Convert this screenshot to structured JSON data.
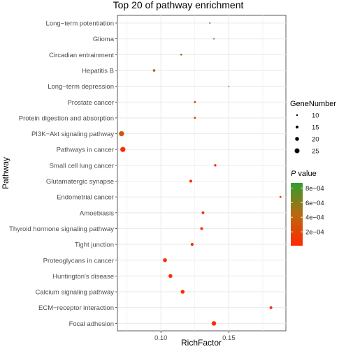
{
  "chart_data": {
    "type": "scatter",
    "title": "Top 20 of pathway enrichment",
    "xlabel": "RichFactor",
    "ylabel": "Pathway",
    "xlim": [
      0.068,
      0.192
    ],
    "xticks": [
      0.1,
      0.15
    ],
    "xtick_labels": [
      "0.10",
      "0.15"
    ],
    "grid": true,
    "categories": [
      "Long−term potentiation",
      "Glioma",
      "Circadian entrainment",
      "Hepatitis B",
      "Long−term depression",
      "Prostate cancer",
      "Protein digestion and absorption",
      "PI3K−Akt signaling pathway",
      "Pathways in cancer",
      "Small cell lung cancer",
      "Glutamatergic synapse",
      "Endometrial cancer",
      "Amoebiasis",
      "Thyroid hormone signaling pathway",
      "Tight junction",
      "Proteoglycans in cancer",
      "Huntington's disease",
      "Calcium signaling pathway",
      "ECM−receptor interaction",
      "Focal adhesion"
    ],
    "points": [
      {
        "pathway": "Long−term potentiation",
        "richfactor": 0.136,
        "gene_number": 9,
        "p_value": 0.00085
      },
      {
        "pathway": "Glioma",
        "richfactor": 0.139,
        "gene_number": 9,
        "p_value": 0.00085
      },
      {
        "pathway": "Circadian entrainment",
        "richfactor": 0.115,
        "gene_number": 11,
        "p_value": 0.0006
      },
      {
        "pathway": "Hepatitis B",
        "richfactor": 0.095,
        "gene_number": 14,
        "p_value": 0.0004
      },
      {
        "pathway": "Long−term depression",
        "richfactor": 0.15,
        "gene_number": 8,
        "p_value": 0.00085
      },
      {
        "pathway": "Prostate cancer",
        "richfactor": 0.125,
        "gene_number": 12,
        "p_value": 0.0003
      },
      {
        "pathway": "Protein digestion and absorption",
        "richfactor": 0.125,
        "gene_number": 12,
        "p_value": 0.0003
      },
      {
        "pathway": "PI3K−Akt signaling pathway",
        "richfactor": 0.071,
        "gene_number": 26,
        "p_value": 0.0003
      },
      {
        "pathway": "Pathways in cancer",
        "richfactor": 0.072,
        "gene_number": 26,
        "p_value": 2e-05
      },
      {
        "pathway": "Small cell lung cancer",
        "richfactor": 0.14,
        "gene_number": 13,
        "p_value": 2e-05
      },
      {
        "pathway": "Glutamatergic synapse",
        "richfactor": 0.122,
        "gene_number": 15,
        "p_value": 2e-05
      },
      {
        "pathway": "Endometrial cancer",
        "richfactor": 0.188,
        "gene_number": 11,
        "p_value": 2e-05
      },
      {
        "pathway": "Amoebiasis",
        "richfactor": 0.131,
        "gene_number": 15,
        "p_value": 2e-05
      },
      {
        "pathway": "Thyroid hormone signaling pathway",
        "richfactor": 0.13,
        "gene_number": 15,
        "p_value": 2e-05
      },
      {
        "pathway": "Tight junction",
        "richfactor": 0.123,
        "gene_number": 16,
        "p_value": 2e-05
      },
      {
        "pathway": "Proteoglycans in cancer",
        "richfactor": 0.103,
        "gene_number": 20,
        "p_value": 2e-05
      },
      {
        "pathway": "Huntington's disease",
        "richfactor": 0.107,
        "gene_number": 20,
        "p_value": 2e-05
      },
      {
        "pathway": "Calcium signaling pathway",
        "richfactor": 0.116,
        "gene_number": 20,
        "p_value": 2e-05
      },
      {
        "pathway": "ECM−receptor interaction",
        "richfactor": 0.181,
        "gene_number": 15,
        "p_value": 2e-05
      },
      {
        "pathway": "Focal adhesion",
        "richfactor": 0.139,
        "gene_number": 23,
        "p_value": 2e-05
      }
    ],
    "size_legend": {
      "title": "GeneNumber",
      "values": [
        10,
        15,
        20,
        25
      ],
      "labels": [
        "10",
        "15",
        "20",
        "25"
      ]
    },
    "color_legend": {
      "title_italic": "P",
      "title_rest": " value",
      "min": 1e-05,
      "max": 0.00087,
      "ticks": [
        0.0008,
        0.0006,
        0.0004,
        0.0002
      ],
      "tick_labels": [
        "8e−04",
        "6e−04",
        "4e−04",
        "2e−04"
      ],
      "low_color": "#ff2a00",
      "high_color": "#2e9e2e"
    },
    "colors": {
      "panel_background": "#ffffff",
      "grid_line": "#ebebeb",
      "axis_line": "#333333",
      "text": "#1a1a1a",
      "tick_text": "#4d4d4d"
    }
  }
}
